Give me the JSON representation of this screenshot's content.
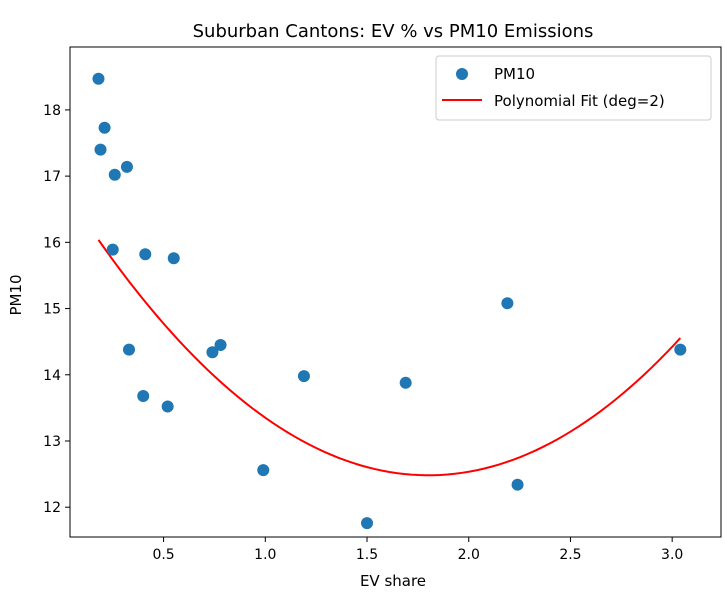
{
  "chart_data": {
    "type": "scatter",
    "title": "Suburban Cantons: EV % vs PM10 Emissions",
    "xlabel": "EV share",
    "ylabel": "PM10",
    "xlim": [
      0.04,
      3.24
    ],
    "ylim": [
      11.55,
      18.95
    ],
    "xticks": [
      0.5,
      1.0,
      1.5,
      2.0,
      2.5,
      3.0
    ],
    "xtick_labels": [
      "0.5",
      "1.0",
      "1.5",
      "2.0",
      "2.5",
      "3.0"
    ],
    "yticks": [
      12,
      13,
      14,
      15,
      16,
      17,
      18
    ],
    "ytick_labels": [
      "12",
      "13",
      "14",
      "15",
      "16",
      "17",
      "18"
    ],
    "grid": false,
    "legend_position": "top-right",
    "series": [
      {
        "name": "PM10",
        "kind": "scatter",
        "color": "#1f77b4",
        "points": [
          {
            "x": 0.18,
            "y": 18.47
          },
          {
            "x": 0.21,
            "y": 17.73
          },
          {
            "x": 0.19,
            "y": 17.4
          },
          {
            "x": 0.32,
            "y": 17.14
          },
          {
            "x": 0.26,
            "y": 17.02
          },
          {
            "x": 0.25,
            "y": 15.89
          },
          {
            "x": 0.41,
            "y": 15.82
          },
          {
            "x": 0.55,
            "y": 15.76
          },
          {
            "x": 0.33,
            "y": 14.38
          },
          {
            "x": 0.4,
            "y": 13.68
          },
          {
            "x": 0.52,
            "y": 13.52
          },
          {
            "x": 0.74,
            "y": 14.34
          },
          {
            "x": 0.78,
            "y": 14.45
          },
          {
            "x": 0.99,
            "y": 12.56
          },
          {
            "x": 1.19,
            "y": 13.98
          },
          {
            "x": 1.5,
            "y": 11.76
          },
          {
            "x": 1.69,
            "y": 13.88
          },
          {
            "x": 2.19,
            "y": 15.08
          },
          {
            "x": 2.24,
            "y": 12.34
          },
          {
            "x": 3.04,
            "y": 14.38
          }
        ]
      },
      {
        "name": "Polynomial Fit (deg=2)",
        "kind": "line",
        "color": "#ff0000",
        "coefficients": [
          1.3515,
          -4.8704,
          16.8701
        ],
        "x_range": [
          0.18,
          3.04
        ],
        "samples": 80
      }
    ]
  }
}
